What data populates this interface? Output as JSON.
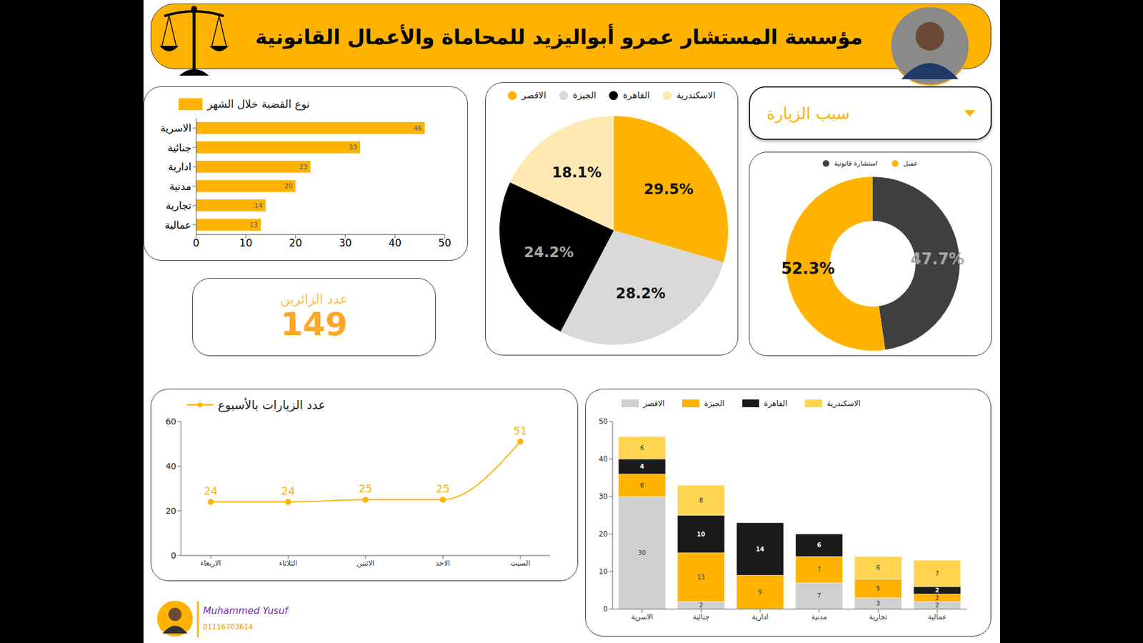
{
  "header": {
    "title": "مؤسسة المستشار عمرو أبواليزيد للمحاماة والأعمال القانونية"
  },
  "kpi": {
    "label": "عدد الزائرين",
    "value": 149
  },
  "filter": {
    "label": "سبب الزيارة"
  },
  "footer": {
    "name": "Muhammed Yusuf",
    "phone": "01116703614"
  },
  "chart_data": [
    {
      "type": "bar",
      "orientation": "horizontal",
      "categories": [
        "الاسرية",
        "جنائية",
        "ادارية",
        "مدنية",
        "تجارية",
        "عمالية"
      ],
      "series": [
        {
          "name": "نوع القضية خلال الشهر",
          "color": "#FFB300",
          "values": [
            46,
            33,
            23,
            20,
            14,
            13
          ]
        }
      ],
      "xlim": [
        0,
        50
      ],
      "xticks": [
        0,
        10,
        20,
        30,
        40,
        50
      ],
      "data_labels": true,
      "legend": "top",
      "grid": false
    },
    {
      "type": "pie",
      "categories": [
        "الاقصر",
        "الجيزة",
        "القاهرة",
        "الاسكندرية"
      ],
      "values": [
        29.5,
        28.2,
        24.2,
        18.1
      ],
      "value_labels": [
        "29.5%",
        "28.2%",
        "24.2%",
        "18.1%"
      ],
      "colors": [
        "#FFB300",
        "#D9D9D9",
        "#000000",
        "#FFE9B3"
      ],
      "data_labels": true,
      "legend": "top"
    },
    {
      "type": "donut",
      "categories": [
        "استشارة قانونية",
        "عميل"
      ],
      "values": [
        47.7,
        52.3
      ],
      "value_labels": [
        "47.7%",
        "52.3%"
      ],
      "colors": [
        "#404040",
        "#FFB300"
      ],
      "data_labels": true,
      "legend": "top"
    },
    {
      "type": "line",
      "categories": [
        "الاربعاء",
        "الثلاثاء",
        "الاثنين",
        "الاحد",
        "السبت"
      ],
      "series": [
        {
          "name": "عدد الزيارات بالأسبوع",
          "color": "#FFB300",
          "marker": "circle",
          "values": [
            24,
            24,
            25,
            25,
            51
          ]
        }
      ],
      "ylim": [
        0,
        60
      ],
      "yticks": [
        0,
        20,
        40,
        60
      ],
      "data_labels": true,
      "legend": "top",
      "grid": false
    },
    {
      "type": "bar",
      "stacked": true,
      "categories": [
        "الاسرية",
        "جنائية",
        "ادارية",
        "مدنية",
        "تجارية",
        "عمالية"
      ],
      "series": [
        {
          "name": "الاقصر",
          "color": "#CFCFCF",
          "values": [
            30,
            2,
            null,
            7,
            3,
            2
          ]
        },
        {
          "name": "الجيزة",
          "color": "#FFB300",
          "values": [
            6,
            13,
            9,
            7,
            5,
            2
          ]
        },
        {
          "name": "القاهرة",
          "color": "#1A1A1A",
          "values": [
            4,
            10,
            14,
            6,
            null,
            2
          ]
        },
        {
          "name": "الاسكندرية",
          "color": "#FFD54F",
          "values": [
            6,
            8,
            null,
            null,
            6,
            7
          ]
        }
      ],
      "ylim": [
        0,
        50
      ],
      "yticks": [
        0,
        10,
        20,
        30,
        40,
        50
      ],
      "data_labels": true,
      "legend": "top",
      "grid": false
    }
  ]
}
